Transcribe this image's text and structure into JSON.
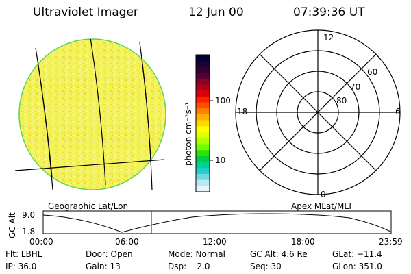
{
  "header": {
    "instrument": "Ultraviolet Imager",
    "date": "12 Jun 00",
    "time": "07:39:36 UT"
  },
  "colorbar": {
    "unit_label": "photon cm⁻²s⁻¹",
    "ticks": [
      "100",
      "10"
    ],
    "colors": [
      "#000033",
      "#1a0033",
      "#330033",
      "#550033",
      "#880022",
      "#b00018",
      "#d8000c",
      "#ff2000",
      "#ff5000",
      "#ff8000",
      "#ffb000",
      "#ffd800",
      "#ffff00",
      "#e0ff00",
      "#b0ff00",
      "#70ff00",
      "#30e000",
      "#00d040",
      "#00d090",
      "#20d0d0",
      "#70d8e0",
      "#b8e8f0",
      "#e8f4f8"
    ]
  },
  "map_labels": {
    "left": "Geographic Lat/Lon",
    "right": "Apex MLat/MLT"
  },
  "polar": {
    "mlt_labels": [
      "12",
      "18",
      "6",
      "0"
    ],
    "lat_labels": [
      "60",
      "70",
      "80"
    ]
  },
  "altitude_plot": {
    "axis_title": "GC Alt",
    "y_ticks": [
      "9.0",
      "1.8"
    ],
    "x_ticks": [
      "00:00",
      "06:00",
      "12:00",
      "18:00",
      "23:59"
    ],
    "marker_color": "#e00000"
  },
  "info": {
    "row1": [
      "Flt: LBHL",
      "Door: Open",
      "Mode: Normal",
      "GC Alt: 4.6 Re",
      "GLat: −11.4"
    ],
    "row2": [
      "IP: 36.0",
      "Gain: 13",
      "Dsp:    2.0",
      "Seq: 30",
      "GLon: 351.0"
    ]
  }
}
